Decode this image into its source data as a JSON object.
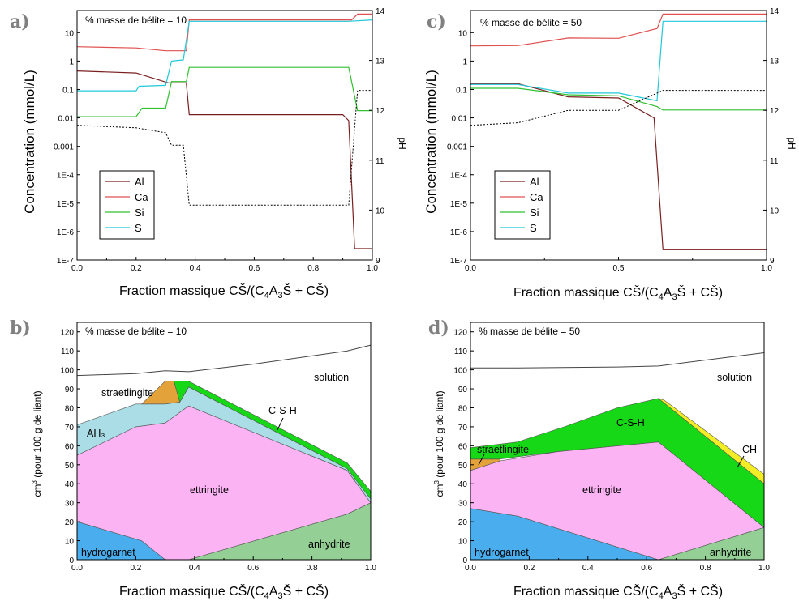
{
  "chart_data": [
    {
      "id": "a",
      "panel_label": "a)",
      "type": "line",
      "annotation": "% masse de bélite = 10",
      "xlabel": "Fraction massique CŠ/(C₄A₃Š + CŠ)",
      "ylabel": "Concentration (mmol/L)",
      "y2label": "pH",
      "xlim": [
        0,
        1
      ],
      "xticks": [
        0.0,
        0.2,
        0.4,
        0.6,
        0.8,
        1.0
      ],
      "xtick_labels": [
        "0.0",
        "0.2",
        "0.4",
        "0.6",
        "0.8",
        "1.0"
      ],
      "yscale": "log",
      "ylim": [
        1e-07,
        60
      ],
      "yticks": [
        1e-07,
        1e-06,
        1e-05,
        0.0001,
        0.001,
        0.01,
        0.1,
        1,
        10
      ],
      "ytick_labels": [
        "1E-7",
        "1E-6",
        "1E-5",
        "1E-4",
        "0.001",
        "0.01",
        "0.1",
        "1",
        "10"
      ],
      "y2lim": [
        9,
        14
      ],
      "y2ticks": [
        9,
        10,
        11,
        12,
        13,
        14
      ],
      "legend": {
        "position": "bottom-left",
        "entries": [
          "Al",
          "Ca",
          "Si",
          "S"
        ]
      },
      "series": [
        {
          "name": "Al",
          "color": "#7a1f1f",
          "x": [
            0,
            0.2,
            0.31,
            0.37,
            0.38,
            0.9,
            0.92,
            0.94,
            1.0
          ],
          "y": [
            0.45,
            0.38,
            0.17,
            0.17,
            0.013,
            0.013,
            0.008,
            2.5e-07,
            2.5e-07
          ]
        },
        {
          "name": "Ca",
          "color": "#e05050",
          "x": [
            0,
            0.2,
            0.3,
            0.37,
            0.38,
            0.93,
            0.95,
            1.0
          ],
          "y": [
            3.2,
            2.9,
            2.3,
            2.3,
            28,
            28,
            45,
            45
          ]
        },
        {
          "name": "Si",
          "color": "#30c030",
          "x": [
            0,
            0.2,
            0.22,
            0.3,
            0.32,
            0.37,
            0.38,
            0.92,
            0.95,
            1.0
          ],
          "y": [
            0.011,
            0.011,
            0.022,
            0.022,
            0.19,
            0.19,
            0.6,
            0.6,
            0.018,
            0.018
          ]
        },
        {
          "name": "S",
          "color": "#20c8d8",
          "x": [
            0,
            0.2,
            0.21,
            0.3,
            0.32,
            0.36,
            0.38,
            0.92,
            1.0
          ],
          "y": [
            0.09,
            0.09,
            0.13,
            0.14,
            1.0,
            1.1,
            25,
            25,
            28
          ]
        },
        {
          "name": "pH",
          "axis": "y2",
          "dashed": true,
          "color": "#000000",
          "x": [
            0,
            0.2,
            0.3,
            0.32,
            0.36,
            0.38,
            0.92,
            0.95,
            1.0
          ],
          "y": [
            11.7,
            11.65,
            11.55,
            11.3,
            11.3,
            10.1,
            10.1,
            12.4,
            12.4
          ]
        }
      ]
    },
    {
      "id": "c",
      "panel_label": "c)",
      "type": "line",
      "annotation": "% masse de bélite = 50",
      "xlabel": "Fraction massique CŠ/(C₄A₃Š + CŠ)",
      "ylabel": "Concentration (mmol/L)",
      "y2label": "pH",
      "xlim": [
        0,
        1
      ],
      "xticks": [
        0.0,
        0.5,
        1.0
      ],
      "xtick_labels": [
        "0.0",
        "0.5",
        "1.0"
      ],
      "yscale": "log",
      "ylim": [
        1e-07,
        60
      ],
      "yticks": [
        1e-07,
        1e-06,
        1e-05,
        0.0001,
        0.001,
        0.01,
        0.1,
        1,
        10
      ],
      "ytick_labels": [
        "1E-7",
        "1E-6",
        "1E-5",
        "1E-4",
        "0.001",
        "0.01",
        "0.1",
        "1",
        "10"
      ],
      "y2lim": [
        9,
        14
      ],
      "y2ticks": [
        9,
        10,
        11,
        12,
        13,
        14
      ],
      "legend": {
        "position": "bottom-left",
        "entries": [
          "Al",
          "Ca",
          "Si",
          "S"
        ]
      },
      "series": [
        {
          "name": "Al",
          "color": "#7a1f1f",
          "x": [
            0,
            0.16,
            0.33,
            0.5,
            0.62,
            0.65,
            1.0
          ],
          "y": [
            0.16,
            0.16,
            0.055,
            0.05,
            0.01,
            2.3e-07,
            2.3e-07
          ]
        },
        {
          "name": "Ca",
          "color": "#e05050",
          "x": [
            0,
            0.16,
            0.33,
            0.5,
            0.63,
            0.65,
            1.0
          ],
          "y": [
            3.4,
            3.5,
            6.5,
            6.3,
            14,
            45,
            45
          ]
        },
        {
          "name": "Si",
          "color": "#30c030",
          "x": [
            0,
            0.16,
            0.33,
            0.5,
            0.63,
            0.65,
            1.0
          ],
          "y": [
            0.11,
            0.11,
            0.065,
            0.06,
            0.025,
            0.019,
            0.019
          ]
        },
        {
          "name": "S",
          "color": "#20c8d8",
          "x": [
            0,
            0.16,
            0.33,
            0.5,
            0.63,
            0.65,
            1.0
          ],
          "y": [
            0.15,
            0.15,
            0.075,
            0.075,
            0.04,
            25,
            25
          ]
        },
        {
          "name": "pH",
          "axis": "y2",
          "dashed": true,
          "color": "#000000",
          "x": [
            0,
            0.16,
            0.33,
            0.5,
            0.65,
            1.0
          ],
          "y": [
            11.7,
            11.75,
            12.0,
            12.0,
            12.4,
            12.4
          ]
        }
      ]
    },
    {
      "id": "b",
      "panel_label": "b)",
      "type": "area",
      "annotation": "% masse de bélite = 10",
      "xlabel": "Fraction massique CŠ/(C₄A₃Š + CŠ)",
      "ylabel": "cm³ (pour 100 g de liant)",
      "xlim": [
        0,
        1
      ],
      "xticks": [
        0.0,
        0.2,
        0.4,
        0.6,
        0.8,
        1.0
      ],
      "xtick_labels": [
        "0.0",
        "0.2",
        "0.4",
        "0.6",
        "0.8",
        "1.0"
      ],
      "ylim": [
        0,
        125
      ],
      "yticks": [
        0,
        10,
        20,
        30,
        40,
        50,
        60,
        70,
        80,
        90,
        100,
        110,
        120
      ],
      "regions": [
        {
          "name": "hydrogarnet",
          "color": "#4aaeee",
          "polygon": [
            [
              0,
              0
            ],
            [
              0,
              20
            ],
            [
              0.22,
              10
            ],
            [
              0.3,
              0
            ],
            [
              0,
              0
            ]
          ]
        },
        {
          "name": "anhydrite",
          "color": "#94d095",
          "polygon": [
            [
              0.38,
              0
            ],
            [
              0.92,
              24
            ],
            [
              1.0,
              30
            ],
            [
              1.0,
              0
            ],
            [
              0.38,
              0
            ]
          ]
        },
        {
          "name": "ettringite",
          "color": "#fbb3f4",
          "polygon": [
            [
              0,
              20
            ],
            [
              0,
              55
            ],
            [
              0.2,
              70
            ],
            [
              0.3,
              72
            ],
            [
              0.38,
              81
            ],
            [
              0.92,
              47
            ],
            [
              1.0,
              30
            ],
            [
              0.92,
              24
            ],
            [
              0.38,
              0
            ],
            [
              0.3,
              0
            ],
            [
              0.22,
              10
            ],
            [
              0,
              20
            ]
          ]
        },
        {
          "name": "AH₃",
          "color": "#aadde6",
          "polygon": [
            [
              0,
              55
            ],
            [
              0,
              71
            ],
            [
              0.2,
              82
            ],
            [
              0.3,
              82
            ],
            [
              0.35,
              83
            ],
            [
              0.38,
              91
            ],
            [
              0.92,
              48
            ],
            [
              1.0,
              32
            ],
            [
              1.0,
              30
            ],
            [
              0.92,
              47
            ],
            [
              0.38,
              81
            ],
            [
              0.3,
              72
            ],
            [
              0.2,
              70
            ],
            [
              0,
              55
            ]
          ]
        },
        {
          "name": "straetlingite",
          "color": "#e3a23a",
          "polygon": [
            [
              0.22,
              82
            ],
            [
              0.3,
              94
            ],
            [
              0.33,
              94
            ],
            [
              0.35,
              83
            ],
            [
              0.3,
              82
            ],
            [
              0.22,
              82
            ]
          ]
        },
        {
          "name": "C-S-H",
          "color": "#16d816",
          "polygon": [
            [
              0.33,
              94
            ],
            [
              0.38,
              94
            ],
            [
              0.92,
              51
            ],
            [
              1.0,
              36
            ],
            [
              1.0,
              32
            ],
            [
              0.92,
              48
            ],
            [
              0.38,
              91
            ],
            [
              0.35,
              83
            ],
            [
              0.33,
              94
            ]
          ]
        }
      ],
      "solution_line": {
        "x": [
          0,
          0.2,
          0.3,
          0.38,
          0.6,
          0.92,
          1.0
        ],
        "y": [
          97,
          98,
          99.5,
          99,
          103,
          110,
          113
        ]
      },
      "labels": {
        "solution": "solution",
        "straetlingite": "straetlingite",
        "AH3": "AH₃",
        "C-S-H": "C-S-H",
        "ettringite": "ettringite",
        "hydrogarnet": "hydrogarnet",
        "anhydrite": "anhydrite"
      }
    },
    {
      "id": "d",
      "panel_label": "d)",
      "type": "area",
      "annotation": "% masse de bélite = 50",
      "xlabel": "Fraction massique CŠ/(C₄A₃Š + CŠ)",
      "ylabel": "cm³ (pour 100 g de liant)",
      "xlim": [
        0,
        1
      ],
      "xticks": [
        0.0,
        0.2,
        0.4,
        0.6,
        0.8,
        1.0
      ],
      "xtick_labels": [
        "0.0",
        "0.2",
        "0.4",
        "0.6",
        "0.8",
        "1.0"
      ],
      "ylim": [
        0,
        125
      ],
      "yticks": [
        0,
        10,
        20,
        30,
        40,
        50,
        60,
        70,
        80,
        90,
        100,
        110,
        120
      ],
      "regions": [
        {
          "name": "hydrogarnet",
          "color": "#4aaeee",
          "polygon": [
            [
              0,
              0
            ],
            [
              0,
              27
            ],
            [
              0.16,
              23
            ],
            [
              0.64,
              0
            ],
            [
              0,
              0
            ]
          ]
        },
        {
          "name": "anhydrite",
          "color": "#94d095",
          "polygon": [
            [
              0.64,
              0
            ],
            [
              1.0,
              17
            ],
            [
              1.0,
              0
            ],
            [
              0.64,
              0
            ]
          ]
        },
        {
          "name": "ettringite",
          "color": "#fbb3f4",
          "polygon": [
            [
              0,
              27
            ],
            [
              0,
              47
            ],
            [
              0.1,
              52
            ],
            [
              0.3,
              57
            ],
            [
              0.64,
              62
            ],
            [
              1.0,
              17
            ],
            [
              0.64,
              0
            ],
            [
              0.16,
              23
            ],
            [
              0,
              27
            ]
          ]
        },
        {
          "name": "straetlingite",
          "color": "#e3a23a",
          "polygon": [
            [
              0,
              47
            ],
            [
              0,
              53
            ],
            [
              0.1,
              53
            ],
            [
              0.1,
              52
            ],
            [
              0,
              47
            ]
          ]
        },
        {
          "name": "C-S-H",
          "color": "#16d816",
          "polygon": [
            [
              0,
              53
            ],
            [
              0,
              59
            ],
            [
              0.16,
              62
            ],
            [
              0.32,
              70
            ],
            [
              0.5,
              80
            ],
            [
              0.64,
              85
            ],
            [
              1.0,
              40
            ],
            [
              1.0,
              17
            ],
            [
              0.64,
              62
            ],
            [
              0.3,
              57
            ],
            [
              0.1,
              53
            ],
            [
              0,
              53
            ]
          ]
        },
        {
          "name": "CH",
          "color": "#f4ec24",
          "polygon": [
            [
              0.64,
              85
            ],
            [
              0.66,
              84
            ],
            [
              1.0,
              45
            ],
            [
              1.0,
              40
            ],
            [
              0.64,
              85
            ]
          ]
        }
      ],
      "solution_line": {
        "x": [
          0,
          0.16,
          0.5,
          0.64,
          1.0
        ],
        "y": [
          101,
          101,
          101.5,
          102,
          109
        ]
      },
      "labels": {
        "solution": "solution",
        "straetlingite": "straetlingite",
        "C-S-H": "C-S-H",
        "CH": "CH",
        "ettringite": "ettringite",
        "hydrogarnet": "hydrogarnet",
        "anhydrite": "anhydrite"
      }
    }
  ]
}
